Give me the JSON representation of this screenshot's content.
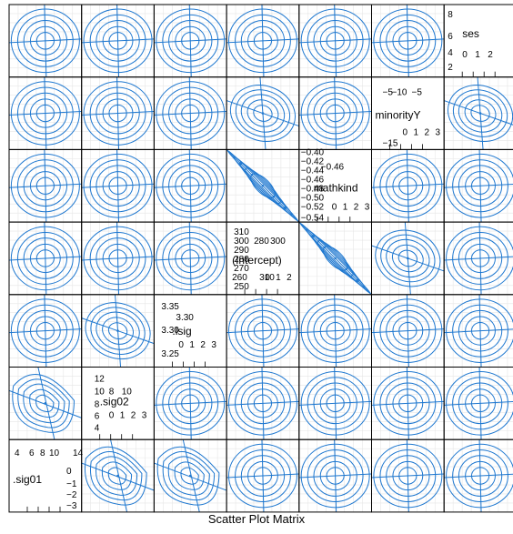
{
  "chart_data": {
    "type": "scatter",
    "subtype": "profile-pairs-contours",
    "title": "Scatter Plot Matrix",
    "xlabel": "",
    "ylabel": "",
    "colors": {
      "contour": "#1f78d0",
      "grid": "#e6e6e6",
      "frame": "#000000"
    },
    "grid": true,
    "variables": [
      {
        "name": ".sig01",
        "tick_labels": [
          "−3",
          "−2",
          "−1",
          "0",
          "4",
          "6",
          "8",
          "10",
          "14"
        ]
      },
      {
        "name": ".sig02",
        "tick_labels": [
          "4",
          "6",
          "8",
          "10",
          "12",
          "8",
          "10",
          "0",
          "1",
          "2",
          "3"
        ]
      },
      {
        "name": ".lsig",
        "tick_labels": [
          "3.25",
          "3.30",
          "3.35",
          "3.30",
          "0",
          "1",
          "2",
          "3"
        ]
      },
      {
        "name": "(Intercept)",
        "tick_labels": [
          "250",
          "260",
          "270",
          "280",
          "290",
          "300",
          "310",
          "280",
          "300",
          "310",
          "0",
          "1",
          "2",
          "3"
        ]
      },
      {
        "name": "mathkind",
        "tick_labels": [
          "−0.54",
          "−0.52",
          "−0.50",
          "−0.48",
          "−0.46",
          "−0.44",
          "−0.42",
          "−0.40",
          "−0.46",
          "0",
          "1",
          "2",
          "3"
        ]
      },
      {
        "name": "minorityY",
        "tick_labels": [
          "−15",
          "−10",
          "−5",
          "−10",
          "−5",
          "0",
          "1",
          "2",
          "3"
        ]
      },
      {
        "name": "ses",
        "tick_labels": [
          "2",
          "4",
          "6",
          "8",
          "0",
          "1",
          "2"
        ]
      }
    ],
    "panel_shapes": {
      "note": "row 0 = top row (ses), column 0 = left column (.sig01); d = diagonal label cell",
      "rows": [
        [
          "round",
          "round",
          "round",
          "round",
          "round",
          "round",
          "d"
        ],
        [
          "round",
          "round",
          "round",
          "tilt",
          "round",
          "d",
          "tilt"
        ],
        [
          "round",
          "round",
          "round",
          "ridge",
          "d",
          "round",
          "round"
        ],
        [
          "round",
          "round",
          "round",
          "d",
          "ridge",
          "tilt",
          "round"
        ],
        [
          "round",
          "tilt",
          "d",
          "round",
          "round",
          "round",
          "round"
        ],
        [
          "drop",
          "d",
          "round",
          "round",
          "round",
          "round",
          "round"
        ],
        [
          "d",
          "drop",
          "drop",
          "round",
          "round",
          "round",
          "round"
        ]
      ]
    }
  }
}
